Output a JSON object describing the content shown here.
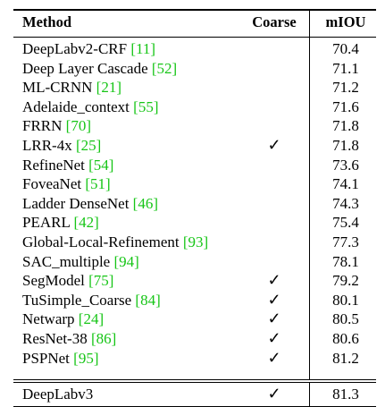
{
  "headers": {
    "method": "Method",
    "coarse": "Coarse",
    "miou": "mIOU"
  },
  "rows": [
    {
      "method": "DeepLabv2-CRF ",
      "ref": "[11]",
      "coarse": "",
      "miou": "70.4"
    },
    {
      "method": "Deep Layer Cascade ",
      "ref": "[52]",
      "coarse": "",
      "miou": "71.1"
    },
    {
      "method": "ML-CRNN ",
      "ref": "[21]",
      "coarse": "",
      "miou": "71.2"
    },
    {
      "method": "Adelaide_context ",
      "ref": "[55]",
      "coarse": "",
      "miou": "71.6"
    },
    {
      "method": "FRRN ",
      "ref": "[70]",
      "coarse": "",
      "miou": "71.8"
    },
    {
      "method": "LRR-4x ",
      "ref": "[25]",
      "coarse": "✓",
      "miou": "71.8"
    },
    {
      "method": "RefineNet ",
      "ref": "[54]",
      "coarse": "",
      "miou": "73.6"
    },
    {
      "method": "FoveaNet ",
      "ref": "[51]",
      "coarse": "",
      "miou": "74.1"
    },
    {
      "method": "Ladder DenseNet ",
      "ref": "[46]",
      "coarse": "",
      "miou": "74.3"
    },
    {
      "method": "PEARL ",
      "ref": "[42]",
      "coarse": "",
      "miou": "75.4"
    },
    {
      "method": "Global-Local-Refinement ",
      "ref": "[93]",
      "coarse": "",
      "miou": "77.3"
    },
    {
      "method": "SAC_multiple ",
      "ref": "[94]",
      "coarse": "",
      "miou": "78.1"
    },
    {
      "method": "SegModel ",
      "ref": "[75]",
      "coarse": "✓",
      "miou": "79.2"
    },
    {
      "method": "TuSimple_Coarse ",
      "ref": "[84]",
      "coarse": "✓",
      "miou": "80.1"
    },
    {
      "method": "Netwarp ",
      "ref": "[24]",
      "coarse": "✓",
      "miou": "80.5"
    },
    {
      "method": "ResNet-38 ",
      "ref": "[86]",
      "coarse": "✓",
      "miou": "80.6"
    },
    {
      "method": "PSPNet ",
      "ref": "[95]",
      "coarse": "✓",
      "miou": "81.2"
    }
  ],
  "final_row": {
    "method": "DeepLabv3",
    "coarse": "✓",
    "miou": "81.3"
  },
  "colors": {
    "reference": "#16c516"
  }
}
